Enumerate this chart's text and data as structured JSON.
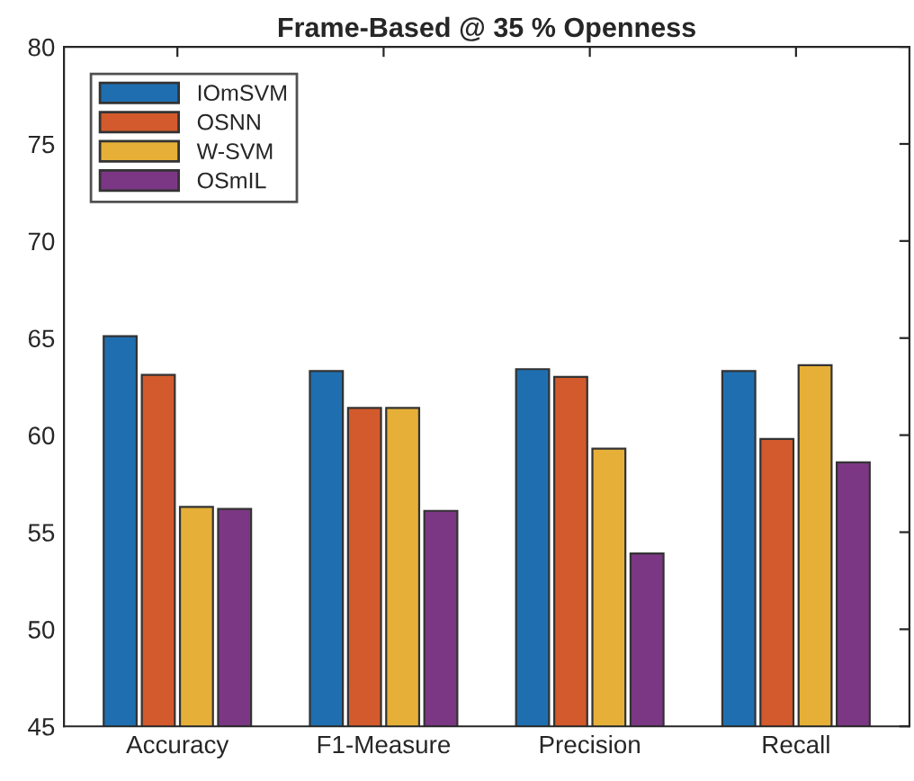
{
  "chart_data": {
    "type": "bar",
    "title": "Frame-Based @ 35 % Openness",
    "categories": [
      "Accuracy",
      "F1-Measure",
      "Precision",
      "Recall"
    ],
    "series": [
      {
        "name": "IOmSVM",
        "color": "#1f6fb0",
        "values": [
          65.1,
          63.3,
          63.4,
          63.3
        ]
      },
      {
        "name": "OSNN",
        "color": "#d35a2c",
        "values": [
          63.1,
          61.4,
          63.0,
          59.8
        ]
      },
      {
        "name": "W-SVM",
        "color": "#e6b038",
        "values": [
          56.3,
          61.4,
          59.3,
          63.6
        ]
      },
      {
        "name": "OSmIL",
        "color": "#7c3784",
        "values": [
          56.2,
          56.1,
          53.9,
          58.6
        ]
      }
    ],
    "ylim": [
      45,
      80
    ],
    "yticks": [
      45,
      50,
      55,
      60,
      65,
      70,
      75,
      80
    ],
    "grid": false,
    "legend": "top left"
  }
}
